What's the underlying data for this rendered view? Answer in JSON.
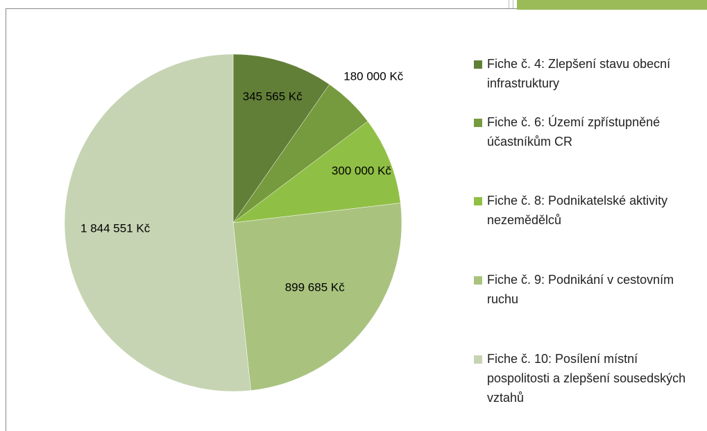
{
  "chart_data": {
    "type": "pie",
    "categories": [
      "Fiche č. 4: Zlepšení stavu obecní infrastruktury",
      "Fiche č. 6: Území zpřístupněné účastníkům CR",
      "Fiche č. 8: Podnikatelské aktivity nezemědělců",
      "Fiche č. 9: Podnikání v cestovním ruchu",
      "Fiche č. 10: Posílení místní pospolitosti a zlepšení sousedských vztahů"
    ],
    "values": [
      345565,
      180000,
      300000,
      899685,
      1844551
    ],
    "value_labels": [
      "345 565 Kč",
      "180 000 Kč",
      "300 000 Kč",
      "899 685 Kč",
      "1 844 551 Kč"
    ],
    "colors": [
      "#627f38",
      "#769a3e",
      "#90bf45",
      "#a9c37f",
      "#c6d4b3"
    ],
    "legend": "right"
  }
}
